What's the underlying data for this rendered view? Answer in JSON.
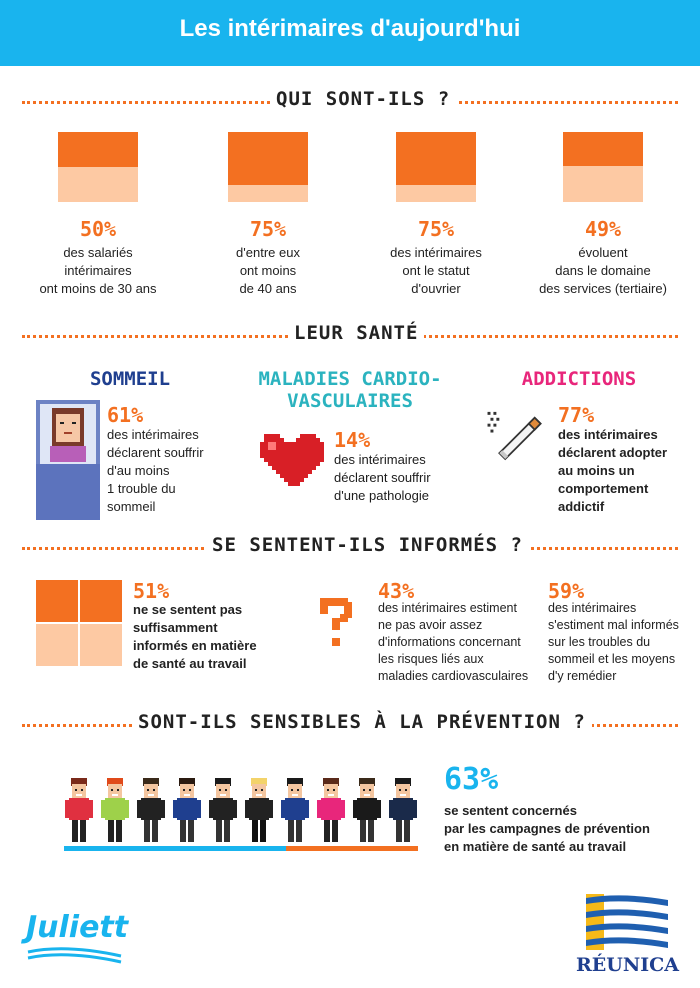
{
  "header": {
    "title": "Les intérimaires d'aujourd'hui"
  },
  "section1": {
    "title": "QUI SONT-ILS ?",
    "stats": [
      {
        "pct": "50%",
        "fill": 0.5,
        "lines": [
          "des salariés",
          "intérimaires",
          "ont moins de 30 ans"
        ]
      },
      {
        "pct": "75%",
        "fill": 0.75,
        "lines": [
          "d'entre eux",
          "ont moins",
          "de 40 ans"
        ]
      },
      {
        "pct": "75%",
        "fill": 0.75,
        "lines": [
          "des intérimaires",
          "ont le statut",
          "d'ouvrier"
        ]
      },
      {
        "pct": "49%",
        "fill": 0.49,
        "lines": [
          "évoluent",
          "dans le domaine",
          "des services (tertiaire)"
        ]
      }
    ]
  },
  "section2": {
    "title": "LEUR SANTÉ",
    "sommeil": {
      "title": "SOMMEIL",
      "pct": "61%",
      "lines": [
        "des intérimaires",
        "déclarent souffrir",
        "d'au moins",
        "1 trouble du",
        "sommeil"
      ],
      "color": "#1f3f8f"
    },
    "cardio": {
      "title_line1": "MALADIES CARDIO-",
      "title_line2": "VASCULAIRES",
      "pct": "14%",
      "lines": [
        "des intérimaires",
        "déclarent souffrir",
        "d'une pathologie"
      ],
      "color": "#2bb3bf"
    },
    "addictions": {
      "title": "ADDICTIONS",
      "pct": "77%",
      "lines": [
        "des intérimaires",
        "déclarent adopter",
        "au moins un",
        "comportement",
        "addictif"
      ],
      "color": "#e8267b"
    }
  },
  "section3": {
    "title": "SE SENTENT-ILS INFORMÉS ?",
    "stat1": {
      "pct": "51%",
      "fill": 0.51,
      "lines": [
        "ne se sentent pas",
        "suffisamment",
        "informés en matière",
        "de santé au travail"
      ]
    },
    "stat2": {
      "pct": "43%",
      "lines": [
        "des intérimaires estiment",
        "ne pas avoir assez",
        "d'informations concernant",
        "les risques liés aux",
        "maladies cardiovasculaires"
      ]
    },
    "stat3": {
      "pct": "59%",
      "lines": [
        "des intérimaires",
        "s'estiment mal informés",
        "sur les troubles du",
        "sommeil et les moyens",
        "d'y remédier"
      ]
    }
  },
  "section4": {
    "title": "SONT-ILS SENSIBLES À LA PRÉVENTION ?",
    "pct": "63%",
    "lines": [
      "se sentent concernés",
      "par les campagnes de prévention",
      "en matière de santé au travail"
    ]
  },
  "logos": {
    "left": "Juliett",
    "right": "RÉUNICA"
  },
  "colors": {
    "accent": "#f37021",
    "accent_light": "#fdc9a3",
    "header": "#19b4ee"
  }
}
